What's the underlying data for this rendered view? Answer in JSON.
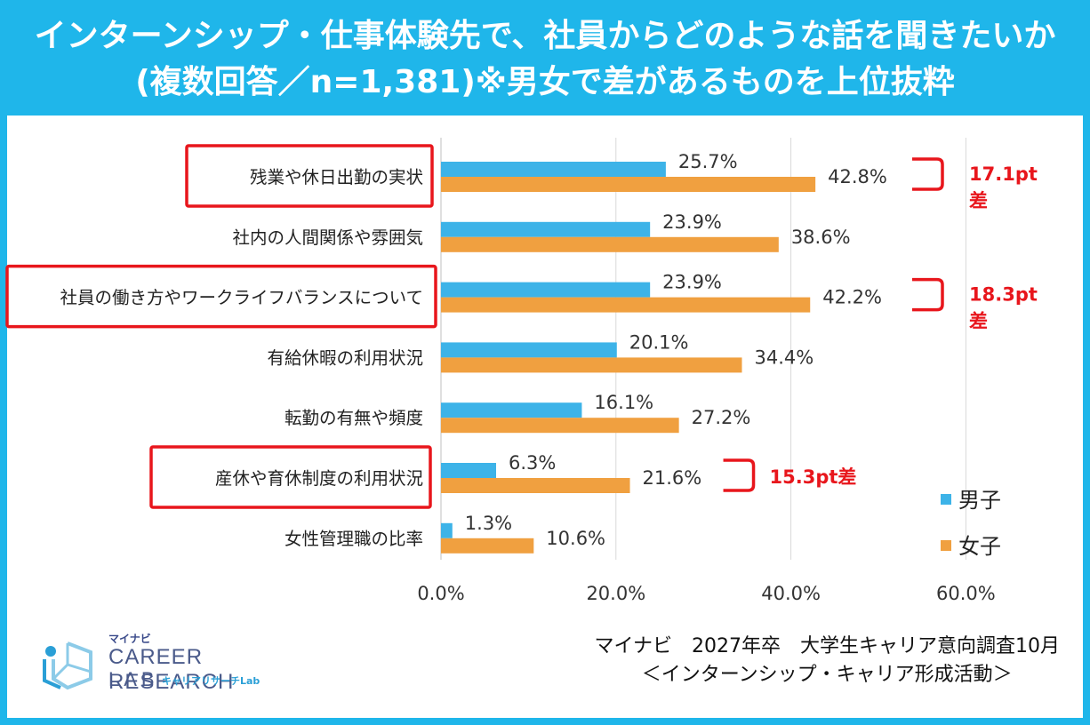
{
  "header": {
    "line1": "インターンシップ・仕事体験先で、社員からどのような話を聞きたいか",
    "line2": "(複数回答／n=1,381)※男女で差があるものを上位抜粋"
  },
  "chart_data": {
    "type": "bar",
    "orientation": "horizontal",
    "categories": [
      "残業や休日出勤の実状",
      "社内の人間関係や雰囲気",
      "社員の働き方やワークライフバランスについて",
      "有給休暇の利用状況",
      "転勤の有無や頻度",
      "産休や育休制度の利用状況",
      "女性管理職の比率"
    ],
    "series": [
      {
        "name": "男子",
        "color": "#3db3e8",
        "values": [
          25.7,
          23.9,
          23.9,
          20.1,
          16.1,
          6.3,
          1.3
        ],
        "labels": [
          "25.7%",
          "23.9%",
          "23.9%",
          "20.1%",
          "16.1%",
          "6.3%",
          "1.3%"
        ]
      },
      {
        "name": "女子",
        "color": "#f0a040",
        "values": [
          42.8,
          38.6,
          42.2,
          34.4,
          27.2,
          21.6,
          10.6
        ],
        "labels": [
          "42.8%",
          "38.6%",
          "42.2%",
          "34.4%",
          "27.2%",
          "21.6%",
          "10.6%"
        ]
      }
    ],
    "xlim": [
      0,
      60
    ],
    "xticks": [
      0,
      20,
      40,
      60
    ],
    "xtick_labels": [
      "0.0%",
      "20.0%",
      "40.0%",
      "60.0%"
    ],
    "grid": true,
    "legend": "bottom-right",
    "highlighted_categories": [
      0,
      2,
      5
    ],
    "highlight_color": "#e8161c",
    "annotations": [
      {
        "category_index": 0,
        "lines": [
          "17.1pt",
          "差"
        ]
      },
      {
        "category_index": 2,
        "lines": [
          "18.3pt",
          "差"
        ]
      },
      {
        "category_index": 5,
        "lines": [
          "15.3pt差"
        ]
      }
    ]
  },
  "logo": {
    "mynavi": "マイナビ",
    "career": "CAREER RESEARCH",
    "lab": "LAB",
    "lab_sub": "キャリアリサーチLab"
  },
  "source": {
    "line1": "マイナビ　2027年卒　大学生キャリア意向調査10月",
    "line2": "＜インターンシップ・キャリア形成活動＞"
  }
}
